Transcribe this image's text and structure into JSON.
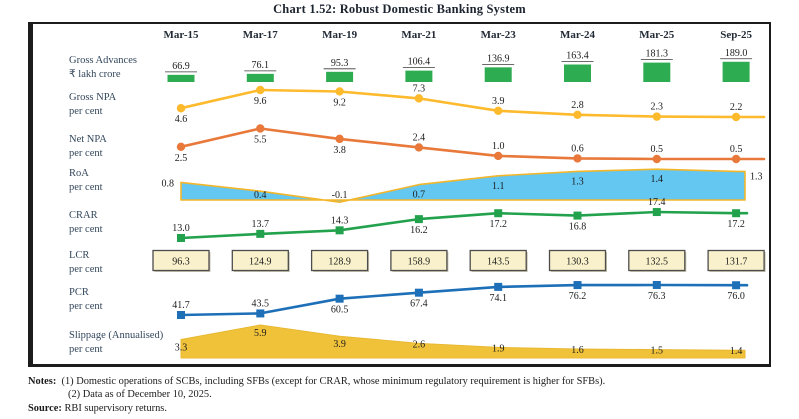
{
  "title": "Chart 1.52: Robust Domestic Banking System",
  "chart_data": {
    "type": "mixed",
    "categories": [
      "Mar-15",
      "Mar-17",
      "Mar-19",
      "Mar-21",
      "Mar-23",
      "Mar-24",
      "Mar-25",
      "Sep-25"
    ],
    "grid": false,
    "legend": "none",
    "series": [
      {
        "name": "Gross Advances",
        "unit": "₹ lakh crore",
        "chart": "bar",
        "color": "#2eac52",
        "values": [
          66.9,
          76.1,
          95.3,
          106.4,
          136.9,
          163.4,
          181.3,
          189.0
        ],
        "labels": [
          "66.9",
          "76.1",
          "95.3",
          "106.4",
          "136.9",
          "163.4",
          "181.3",
          "189.0"
        ]
      },
      {
        "name": "Gross NPA",
        "unit": "per cent",
        "chart": "line",
        "marker": "circle",
        "color": "#fdba2d",
        "values": [
          4.6,
          9.6,
          9.2,
          7.3,
          3.9,
          2.8,
          2.3,
          2.2
        ],
        "labels": [
          "4.6",
          "9.6",
          "9.2",
          "7.3",
          "3.9",
          "2.8",
          "2.3",
          "2.2"
        ]
      },
      {
        "name": "Net NPA",
        "unit": "per cent",
        "chart": "line",
        "marker": "circle",
        "color": "#e8793a",
        "values": [
          2.5,
          5.5,
          3.8,
          2.4,
          1.0,
          0.6,
          0.5,
          0.5
        ],
        "labels": [
          "2.5",
          "5.5",
          "3.8",
          "2.4",
          "1.0",
          "0.6",
          "0.5",
          "0.5"
        ]
      },
      {
        "name": "RoA",
        "unit": "per cent",
        "chart": "area",
        "color": "#63c7f2",
        "stroke": "#f2b62b",
        "values": [
          0.8,
          0.4,
          -0.1,
          0.7,
          1.1,
          1.3,
          1.4,
          1.3
        ],
        "labels": [
          "0.8",
          "0.4",
          "-0.1",
          "0.7",
          "1.1",
          "1.3",
          "1.4",
          "1.3"
        ]
      },
      {
        "name": "CRAR",
        "unit": "per cent",
        "chart": "line",
        "marker": "square",
        "color": "#22a24d",
        "values": [
          13.0,
          13.7,
          14.3,
          16.2,
          17.2,
          16.8,
          17.4,
          17.2
        ],
        "labels": [
          "13.0",
          "13.7",
          "14.3",
          "16.2",
          "17.2",
          "16.8",
          "17.4",
          "17.2"
        ]
      },
      {
        "name": "LCR",
        "unit": "per cent",
        "chart": "box",
        "color": "#f8f1cb",
        "stroke": "#4d4d4d",
        "values": [
          96.3,
          124.9,
          128.9,
          158.9,
          143.5,
          130.3,
          132.5,
          131.7
        ],
        "labels": [
          "96.3",
          "124.9",
          "128.9",
          "158.9",
          "143.5",
          "130.3",
          "132.5",
          "131.7"
        ]
      },
      {
        "name": "PCR",
        "unit": "per cent",
        "chart": "line",
        "marker": "square",
        "color": "#1d6fb8",
        "values": [
          41.7,
          43.5,
          60.5,
          67.4,
          74.1,
          76.2,
          76.3,
          76.0
        ],
        "labels": [
          "41.7",
          "43.5",
          "60.5",
          "67.4",
          "74.1",
          "76.2",
          "76.3",
          "76.0"
        ]
      },
      {
        "name": "Slippage (Annualised)",
        "unit": "per cent",
        "chart": "area",
        "color": "#f0c23a",
        "stroke": "#e8b830",
        "values": [
          3.3,
          5.9,
          3.9,
          2.6,
          1.9,
          1.6,
          1.5,
          1.4
        ],
        "labels": [
          "3.3",
          "5.9",
          "3.9",
          "2.6",
          "1.9",
          "1.6",
          "1.5",
          "1.4"
        ]
      }
    ]
  },
  "colors": {
    "frame": "#1c1c1c",
    "row_label": "#33475c",
    "column_header": "#222b36",
    "value_text": "#1c1c1c"
  },
  "notes": {
    "label": "Notes:",
    "item1": "(1)  Domestic operations of SCBs, including SFBs (except for CRAR, whose minimum regulatory requirement is higher for SFBs).",
    "item2": "(2)  Data as of December 10, 2025.",
    "source_label": "Source:",
    "source_text": "RBI supervisory returns."
  }
}
